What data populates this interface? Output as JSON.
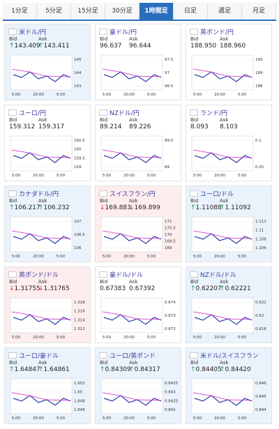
{
  "tabs": [
    "1分足",
    "5分足",
    "15分足",
    "30分足",
    "1時間足",
    "日足",
    "週足",
    "月足"
  ],
  "active_tab": 4,
  "labels": {
    "bid": "Bid",
    "ask": "Ask"
  },
  "panels": [
    {
      "name": "米ドル/円",
      "arrow": "↑",
      "dir": "up",
      "bid": "143.409",
      "ask": "143.411",
      "yticks": [
        "145",
        "144",
        "143"
      ],
      "xticks": [
        "5:00",
        "20:00",
        "5:00"
      ]
    },
    {
      "name": "豪ドル/円",
      "bid": "96.637",
      "ask": "96.644",
      "yticks": [
        "97.5",
        "97",
        "96.5"
      ],
      "xticks": [
        "5:00",
        "20:00",
        "5:00"
      ]
    },
    {
      "name": "英ポンド/円",
      "bid": "188.950",
      "ask": "188.960",
      "yticks": [
        "190",
        "189",
        "188"
      ],
      "xticks": [
        "5:00",
        "20:00",
        "5:00"
      ]
    },
    {
      "name": "ユーロ/円",
      "bid": "159.312",
      "ask": "159.317",
      "yticks": [
        "160.5",
        "160",
        "159.5",
        "159"
      ],
      "xticks": [
        "5:00",
        "20:00",
        "5:00"
      ]
    },
    {
      "name": "NZドル/円",
      "bid": "89.214",
      "ask": "89.226",
      "yticks": [
        "89.5",
        "89"
      ],
      "xticks": [
        "5:00",
        "20:00",
        "5:00"
      ]
    },
    {
      "name": "ランド/円",
      "bid": "8.093",
      "ask": "8.103",
      "yticks": [
        "0.1",
        "0.05"
      ],
      "xticks": [
        "5:00",
        "20:00",
        "5:00"
      ]
    },
    {
      "name": "カナダドル/円",
      "arrow": "↑",
      "dir": "up",
      "bid": "106.217",
      "ask": "106.232",
      "yticks": [
        "107",
        "106.5",
        "106"
      ],
      "xticks": [
        "5:00",
        "20:00",
        "5:00"
      ]
    },
    {
      "name": "スイスフラン/円",
      "arrow": "↓",
      "dir": "down",
      "bid": "169.883",
      "ask": "169.899",
      "yticks": [
        "171",
        "170.5",
        "170",
        "169.5",
        "169"
      ],
      "xticks": [
        "5:00",
        "20:00",
        "5:00"
      ]
    },
    {
      "name": "ユーロ/ドル",
      "arrow": "↑",
      "dir": "up",
      "bid": "1.11088",
      "ask": "1.11092",
      "yticks": [
        "1.112",
        "1.11",
        "1.108",
        "1.106"
      ],
      "xticks": [
        "5:00",
        "20:00",
        "5:00"
      ]
    },
    {
      "name": "英ポンド/ドル",
      "arrow": "↓",
      "dir": "down",
      "bid": "1.31755",
      "ask": "1.31765",
      "yticks": [
        "1.318",
        "1.316",
        "1.314",
        "1.312"
      ],
      "xticks": [
        "5:00",
        "20:00",
        "5:00"
      ]
    },
    {
      "name": "豪ドル/ドル",
      "bid": "0.67383",
      "ask": "0.67392",
      "yticks": [
        "0.674",
        "0.673",
        "0.672"
      ],
      "xticks": [
        "5:00",
        "20:00",
        "5:00"
      ]
    },
    {
      "name": "NZドル/ドル",
      "arrow": "↑",
      "dir": "up",
      "bid": "0.62207",
      "ask": "0.62221",
      "yticks": [
        "0.622",
        "0.62",
        "0.618"
      ],
      "xticks": [
        "5:00",
        "20:00",
        "5:00"
      ]
    },
    {
      "name": "ユーロ/豪ドル",
      "arrow": "↑",
      "dir": "up",
      "bid": "1.64847",
      "ask": "1.64861",
      "yticks": [
        "1.652",
        "1.65",
        "1.648",
        "1.646"
      ],
      "xticks": [
        "5:00",
        "20:00",
        "5:00"
      ]
    },
    {
      "name": "ユーロ/英ポンド",
      "arrow": "↑",
      "dir": "up",
      "bid": "0.84309",
      "ask": "0.84317",
      "yticks": [
        "0.8435",
        "0.843",
        "0.8425",
        "0.842"
      ],
      "xticks": [
        "5:00",
        "20:00",
        "5:00"
      ]
    },
    {
      "name": "米ドル/スイスフラン",
      "arrow": "↑",
      "dir": "up",
      "bid": "0.84405",
      "ask": "0.84420",
      "yticks": [
        "0.846",
        "0.845",
        "0.844"
      ],
      "xticks": [
        "5:00",
        "20:00",
        "5:00"
      ]
    }
  ]
}
